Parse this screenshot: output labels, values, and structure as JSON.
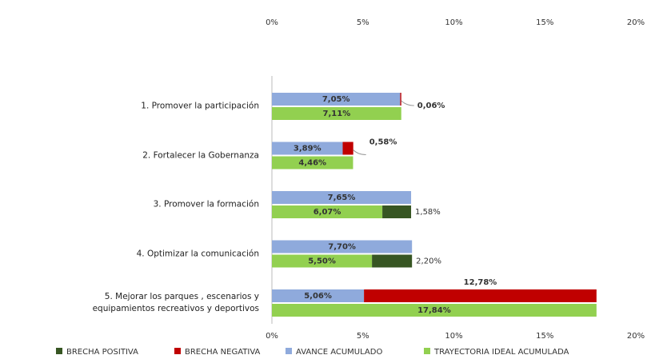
{
  "chart_data": {
    "type": "bar",
    "orientation": "horizontal",
    "categories": [
      "1. Promover la participación",
      "2. Fortalecer la Gobernanza",
      "3. Promover la formación",
      "4. Optimizar la comunicación",
      "5. Mejorar los parques , escenarios y\nequipamientos recreativos y deportivos"
    ],
    "series": [
      {
        "name": "BRECHA POSITIVA",
        "color": "#375623",
        "values": [
          null,
          null,
          1.58,
          2.2,
          null
        ],
        "value_labels": [
          null,
          null,
          "1,58%",
          "2,20%",
          null
        ]
      },
      {
        "name": "BRECHA NEGATIVA",
        "color": "#c00000",
        "values": [
          0.06,
          0.58,
          null,
          null,
          12.78
        ],
        "value_labels": [
          "0,06%",
          "0,58%",
          null,
          null,
          "12,78%"
        ]
      },
      {
        "name": "AVANCE ACUMULADO",
        "color": "#8faadc",
        "values": [
          7.05,
          3.89,
          7.65,
          7.7,
          5.06
        ],
        "value_labels": [
          "7,05%",
          "3,89%",
          "7,65%",
          "7,70%",
          "5,06%"
        ]
      },
      {
        "name": "TRAYECTORIA IDEAL ACUMULADA",
        "color": "#92d050",
        "values": [
          7.11,
          4.46,
          6.07,
          5.5,
          17.84
        ],
        "value_labels": [
          "7,11%",
          "4,46%",
          "6,07%",
          "5,50%",
          "17,84%"
        ]
      }
    ],
    "xlim": [
      0,
      20
    ],
    "xticks": [
      {
        "value": 0,
        "label": "0%"
      },
      {
        "value": 5,
        "label": "5%"
      },
      {
        "value": 10,
        "label": "10%"
      },
      {
        "value": 15,
        "label": "15%"
      },
      {
        "value": 20,
        "label": "20%"
      }
    ],
    "grid": false,
    "legend": "bottom"
  }
}
